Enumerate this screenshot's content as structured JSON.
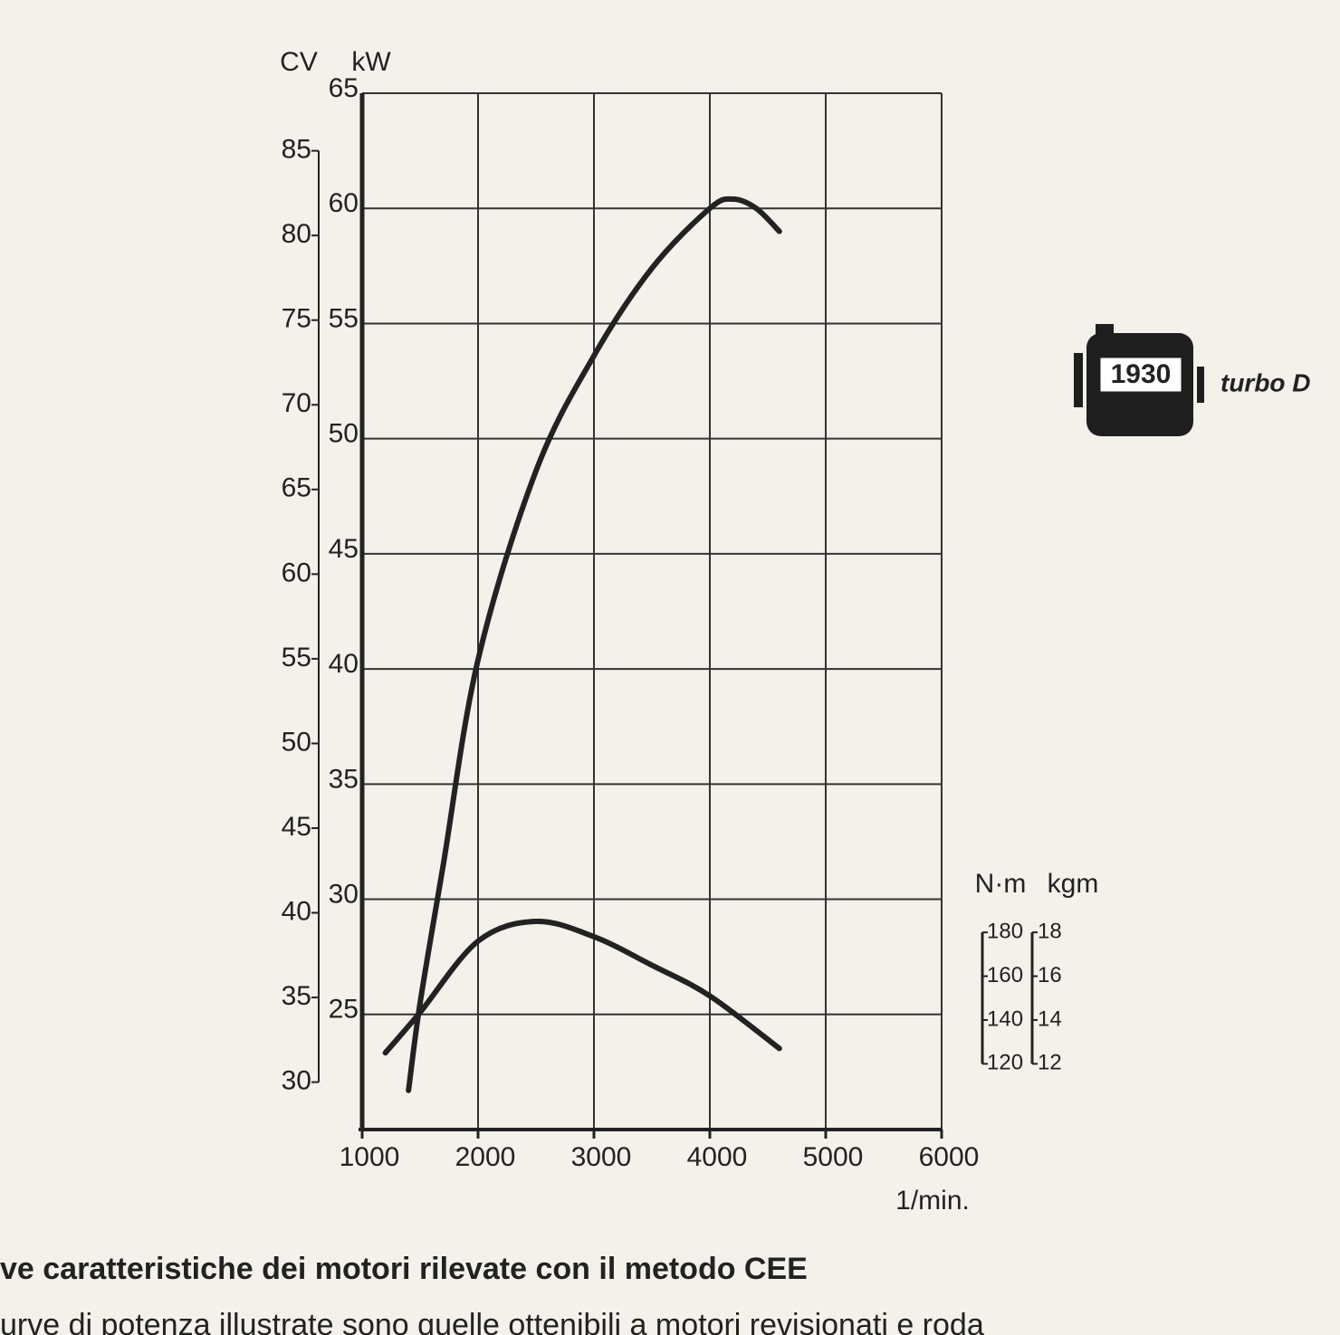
{
  "chart_data": {
    "type": "line",
    "x_label": "1/min.",
    "y_label": "kW",
    "y2_label": "CV",
    "y3_label": "N·m",
    "y4_label": "kgm",
    "xlim": [
      1000,
      6000
    ],
    "xticks": [
      1000,
      2000,
      3000,
      4000,
      5000,
      6000
    ],
    "ylim": [
      20,
      65
    ],
    "yticks": [
      25,
      30,
      35,
      40,
      45,
      50,
      55,
      60,
      65
    ],
    "y2lim": [
      27.2,
      88.4
    ],
    "y2ticks": [
      30,
      35,
      40,
      45,
      50,
      55,
      60,
      65,
      70,
      75,
      80,
      85
    ],
    "y3lim": [
      90,
      563
    ],
    "y3ticks": [
      120,
      140,
      160,
      180
    ],
    "y4lim": [
      9,
      56.3
    ],
    "y4ticks": [
      12,
      14,
      16,
      18
    ],
    "grid": true,
    "series": [
      {
        "color": "#222222",
        "x": [
          1400,
          1500,
          1700,
          2000,
          2500,
          3000,
          3500,
          4000,
          4200,
          4400,
          4600
        ],
        "values": [
          21.7,
          25.5,
          31.5,
          40.4,
          48.6,
          53.6,
          57.4,
          60.0,
          60.4,
          60.0,
          59.0
        ]
      },
      {
        "color": "#222222",
        "axis": "y3",
        "x": [
          1200,
          1500,
          2000,
          2500,
          3000,
          3500,
          4000,
          4600
        ],
        "values": [
          125,
          143.5,
          176,
          185,
          178,
          165,
          151,
          127
        ]
      }
    ]
  },
  "badge": {
    "label": "1930",
    "text": "turbo D"
  },
  "caption": {
    "title": "ve caratteristiche dei motori rilevate con il metodo CEE",
    "text": "urve di potenza illustrate sono quelle ottenibili a motori revisionati e roda"
  }
}
